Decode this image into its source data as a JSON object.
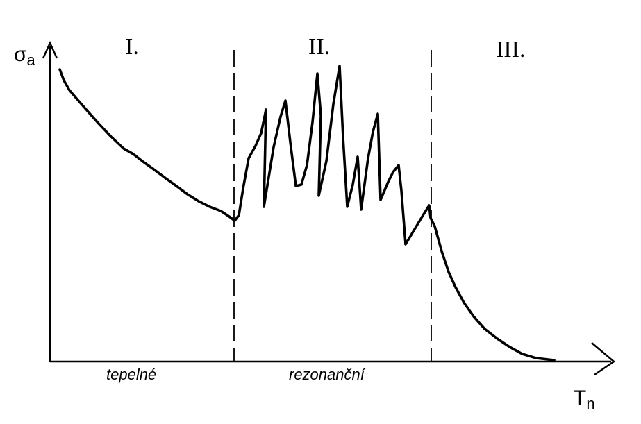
{
  "axes": {
    "y_symbol": "σ",
    "y_subscript": "a",
    "x_symbol": "T",
    "x_subscript": "n"
  },
  "regions": [
    {
      "numeral": "I.",
      "name": "tepelné"
    },
    {
      "numeral": "II.",
      "name": "rezonanční"
    },
    {
      "numeral": "III.",
      "name": ""
    }
  ],
  "line_color": "#000000",
  "background": "#ffffff"
}
